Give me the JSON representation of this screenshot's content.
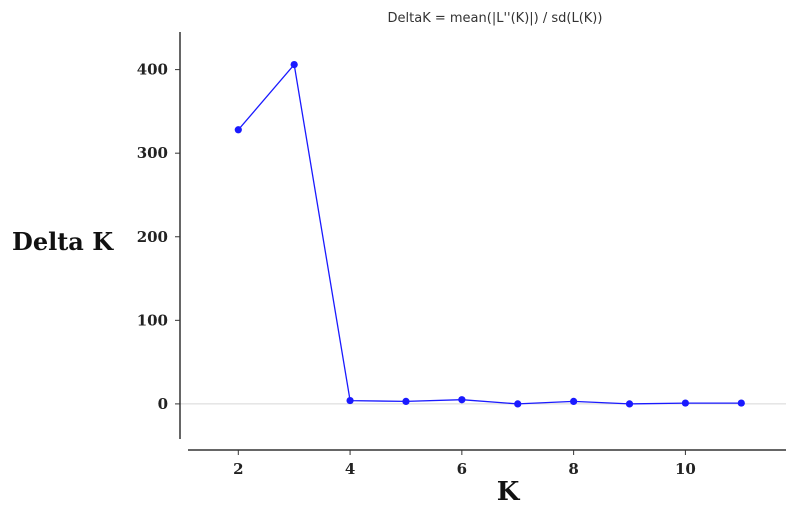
{
  "chart_data": {
    "type": "line",
    "title": "DeltaK = mean(|L''(K)|) / sd(L(K))",
    "xlabel": "K",
    "ylabel": "Delta K",
    "x": [
      2,
      3,
      4,
      5,
      6,
      7,
      8,
      9,
      10,
      11
    ],
    "series": [
      {
        "values": [
          328,
          406,
          4,
          3,
          5,
          0,
          3,
          0,
          1,
          1
        ],
        "color": "#1a1aff"
      }
    ],
    "xlim": [
      1.1,
      11.8
    ],
    "ylim": [
      -42,
      445
    ],
    "xticks": [
      2,
      4,
      6,
      8,
      10
    ],
    "yticks": [
      0,
      100,
      200,
      300,
      400
    ],
    "grid": false,
    "zero_line": true,
    "legend": "none"
  }
}
